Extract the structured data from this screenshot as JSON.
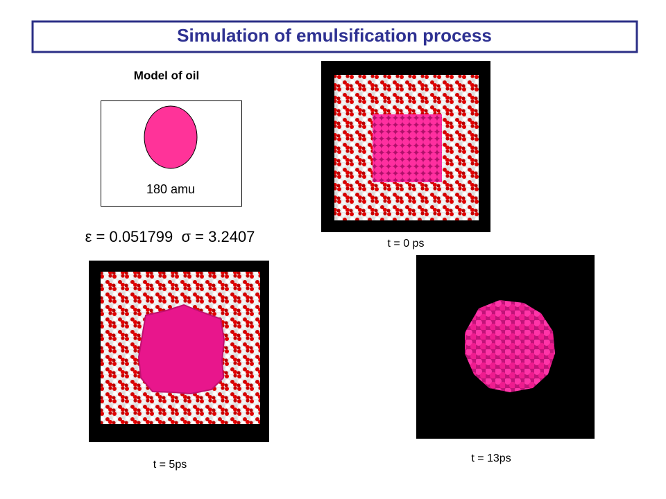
{
  "header": {
    "title": "Simulation of emulsification process"
  },
  "model": {
    "heading": "Model of oil",
    "mass_label": "180 amu",
    "parameters": "ε = 0.051799  σ = 3.2407"
  },
  "snapshots": [
    {
      "label": "t = 0 ps"
    },
    {
      "label": "t = 5ps"
    },
    {
      "label": "t = 13ps"
    }
  ]
}
